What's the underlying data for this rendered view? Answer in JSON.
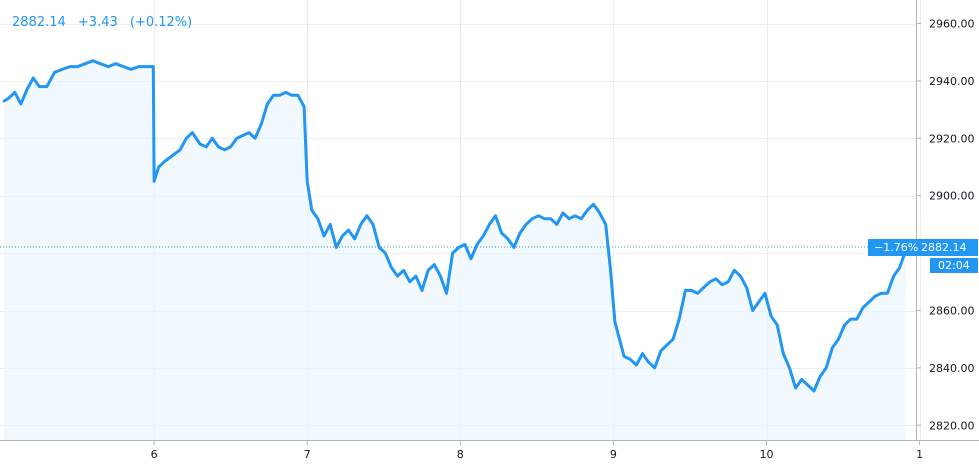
{
  "header": {
    "last_price": "2882.14",
    "change": "+3.43",
    "change_pct": "(+0.12%)"
  },
  "price_tag": {
    "change_pct": "−1.76%",
    "price": "2882.14",
    "countdown": "02:04"
  },
  "colors": {
    "line": "#2196f3",
    "fill": "#eaf4fd",
    "grid": "#eceef2",
    "price_line": "#26a69a",
    "tag": "#2196f3"
  },
  "chart_data": {
    "type": "area",
    "x_ticks": [
      "6",
      "7",
      "8",
      "9",
      "10",
      "1"
    ],
    "y_ticks": [
      "2960.00",
      "2940.00",
      "2920.00",
      "2900.00",
      "2860.00",
      "2840.00",
      "2820.00"
    ],
    "ylim": [
      2815.5,
      2963
    ],
    "xlim": [
      5.02,
      11.0
    ],
    "last_price": 2882.14,
    "grid": true,
    "x": [
      5.02,
      5.05,
      5.09,
      5.13,
      5.17,
      5.21,
      5.25,
      5.3,
      5.35,
      5.4,
      5.45,
      5.5,
      5.55,
      5.6,
      5.65,
      5.7,
      5.75,
      5.8,
      5.85,
      5.9,
      5.95,
      5.995,
      6.0,
      6.03,
      6.07,
      6.12,
      6.17,
      6.21,
      6.25,
      6.3,
      6.34,
      6.38,
      6.42,
      6.46,
      6.5,
      6.54,
      6.58,
      6.62,
      6.66,
      6.7,
      6.74,
      6.78,
      6.82,
      6.86,
      6.9,
      6.94,
      6.98,
      7.0,
      7.03,
      7.07,
      7.11,
      7.15,
      7.19,
      7.23,
      7.27,
      7.31,
      7.35,
      7.39,
      7.43,
      7.47,
      7.51,
      7.55,
      7.59,
      7.63,
      7.67,
      7.71,
      7.75,
      7.79,
      7.83,
      7.87,
      7.91,
      7.95,
      7.99,
      8.03,
      8.07,
      8.11,
      8.15,
      8.19,
      8.23,
      8.27,
      8.31,
      8.35,
      8.39,
      8.43,
      8.47,
      8.51,
      8.55,
      8.59,
      8.63,
      8.67,
      8.71,
      8.75,
      8.79,
      8.83,
      8.87,
      8.91,
      8.95,
      8.98,
      9.01,
      9.04,
      9.07,
      9.11,
      9.15,
      9.19,
      9.23,
      9.27,
      9.31,
      9.35,
      9.39,
      9.43,
      9.47,
      9.51,
      9.55,
      9.59,
      9.63,
      9.67,
      9.71,
      9.75,
      9.79,
      9.83,
      9.87,
      9.91,
      9.95,
      9.99,
      10.03,
      10.07,
      10.11,
      10.15,
      10.19,
      10.23,
      10.27,
      10.31,
      10.35,
      10.39,
      10.43,
      10.47,
      10.51,
      10.55,
      10.59,
      10.63,
      10.67,
      10.71,
      10.75,
      10.79,
      10.83,
      10.87,
      10.91
    ],
    "y": [
      2933,
      2934,
      2936,
      2932,
      2937,
      2941,
      2938,
      2938,
      2943,
      2944,
      2945,
      2945,
      2946,
      2947,
      2946,
      2945,
      2946,
      2945,
      2944,
      2945,
      2945,
      2945,
      2905,
      2910,
      2912,
      2914,
      2916,
      2920,
      2922,
      2918,
      2917,
      2920,
      2917,
      2916,
      2917,
      2920,
      2921,
      2922,
      2920,
      2925,
      2932,
      2935,
      2935,
      2936,
      2935,
      2935,
      2931,
      2905,
      2895,
      2892,
      2886,
      2890,
      2882,
      2886,
      2888,
      2885,
      2890,
      2893,
      2890,
      2882,
      2880,
      2875,
      2872,
      2874,
      2870,
      2872,
      2867,
      2874,
      2876,
      2872,
      2866,
      2880,
      2882,
      2883,
      2878,
      2883,
      2886,
      2890,
      2893,
      2887,
      2885,
      2882,
      2887,
      2890,
      2892,
      2893,
      2892,
      2892,
      2890,
      2894,
      2892,
      2893,
      2892,
      2895,
      2897,
      2894,
      2890,
      2875,
      2856,
      2850,
      2844,
      2843,
      2841,
      2845,
      2842,
      2840,
      2846,
      2848,
      2850,
      2857,
      2867,
      2867,
      2866,
      2868,
      2870,
      2871,
      2869,
      2870,
      2874,
      2872,
      2868,
      2860,
      2863,
      2866,
      2858,
      2855,
      2845,
      2840,
      2833,
      2836,
      2834,
      2832,
      2837,
      2840,
      2847,
      2850,
      2855,
      2857,
      2857,
      2861,
      2863,
      2865,
      2866,
      2866,
      2872,
      2875,
      2881
    ]
  }
}
